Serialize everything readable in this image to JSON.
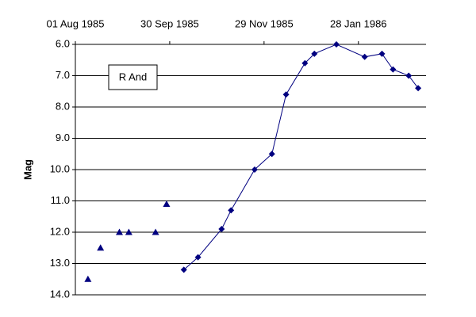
{
  "chart_data": {
    "type": "scatter",
    "y_label": "Mag",
    "label": "R And",
    "x": [],
    "series": [
      {
        "color": "#000080",
        "marker": "triangle",
        "line": false,
        "x": [
          "1985-08-09",
          "1985-08-17",
          "1985-08-29",
          "1985-09-04",
          "1985-09-21",
          "1985-09-28"
        ],
        "values": [
          13.5,
          12.5,
          12.0,
          12.0,
          12.0,
          11.1
        ]
      },
      {
        "color": "#000080",
        "marker": "diamond",
        "line": true,
        "x": [
          "1985-10-09",
          "1985-10-18",
          "1985-11-02",
          "1985-11-08",
          "1985-11-23",
          "1985-12-04",
          "1985-12-13",
          "1985-12-25",
          "1985-12-31",
          "1986-01-14",
          "1986-02-01",
          "1986-02-12",
          "1986-02-19",
          "1986-03-01",
          "1986-03-07"
        ],
        "values": [
          13.2,
          12.8,
          11.9,
          11.3,
          10.0,
          9.5,
          7.6,
          6.6,
          6.3,
          6.0,
          6.4,
          6.3,
          6.8,
          7.0,
          7.4
        ]
      }
    ],
    "xlim": [
      "1985-08-01",
      "1986-03-12"
    ],
    "xticks": [
      {
        "value": "1985-08-01",
        "label": "01 Aug 1985"
      },
      {
        "value": "1985-09-30",
        "label": "30 Sep 1985"
      },
      {
        "value": "1985-11-29",
        "label": "29 Nov 1985"
      },
      {
        "value": "1986-01-28",
        "label": "28 Jan 1986"
      }
    ],
    "ylim": [
      6,
      14
    ],
    "yticks": [
      {
        "value": 6,
        "label": "6.0"
      },
      {
        "value": 7,
        "label": "7.0"
      },
      {
        "value": 8,
        "label": "8.0"
      },
      {
        "value": 9,
        "label": "9.0"
      },
      {
        "value": 10,
        "label": "10.0"
      },
      {
        "value": 11,
        "label": "11.0"
      },
      {
        "value": 12,
        "label": "12.0"
      },
      {
        "value": 13,
        "label": "13.0"
      },
      {
        "value": 14,
        "label": "14.0"
      }
    ],
    "y_inverted": true,
    "grid": true
  }
}
